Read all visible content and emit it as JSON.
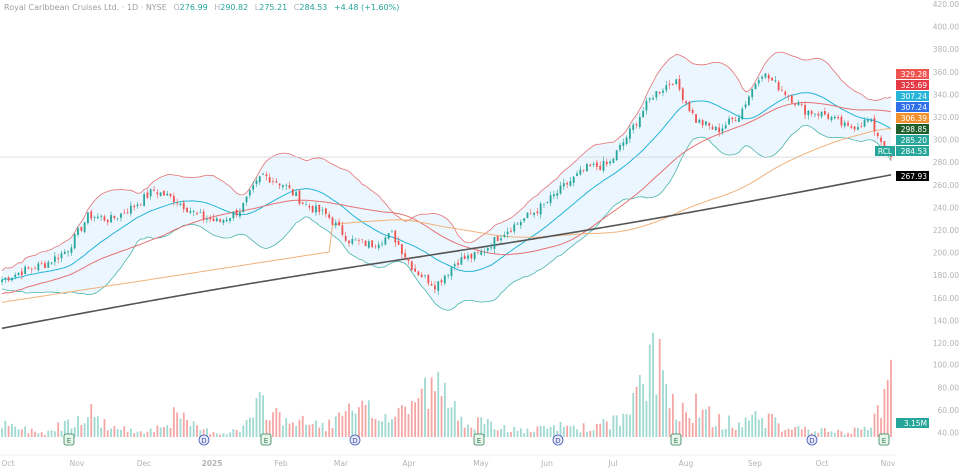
{
  "header": {
    "symbol_name": "Royal Caribbean Cruises Ltd.",
    "interval": "1D",
    "exchange": "NYSE",
    "open_label": "O",
    "open": "276.99",
    "high_label": "H",
    "high": "290.82",
    "low_label": "L",
    "low": "275.21",
    "close_label": "C",
    "close": "284.53",
    "change": "+4.48 (+1.60%)"
  },
  "price_tags": [
    {
      "value": "329.28",
      "color": "#ef5350"
    },
    {
      "value": "325.69",
      "color": "#e53945"
    },
    {
      "value": "307.24",
      "color": "#26b5d9"
    },
    {
      "value": "307.24",
      "color": "#2f6fe8"
    },
    {
      "value": "306.39",
      "color": "#f0902e"
    },
    {
      "value": "298.85",
      "color": "#1f5e2a"
    },
    {
      "value": "285.20",
      "color": "#26a69a"
    },
    {
      "value": "284.53",
      "color": "#26a69a"
    },
    {
      "value": "267.93",
      "color": "#000000"
    }
  ],
  "symbol_tag": "RCL",
  "volume_tag": "3.15M",
  "colors": {
    "up": "#26a69a",
    "down": "#ef5350",
    "upVol": "#9fd9d2",
    "downVol": "#f4a6a4",
    "bb": "#e57373",
    "bbFill": "#e3f2fd",
    "ma20": "#26b5d9",
    "ma50": "#e57373",
    "ma100": "#f0b27a",
    "ma200": "#555555"
  },
  "chart_data": {
    "type": "candlestick",
    "title": "Royal Caribbean Cruises Ltd. · 1D · NYSE",
    "ylim": [
      120,
      420
    ],
    "y_ticks": [
      "420.00",
      "400.00",
      "380.00",
      "360.00",
      "340.00",
      "320.00",
      "300.00",
      "280.00",
      "260.00",
      "240.00",
      "220.00",
      "200.00",
      "180.00",
      "160.00",
      "140.00",
      "120.00"
    ],
    "volume_ticks": [
      "100.00",
      "80.00",
      "60.00",
      "40.00"
    ],
    "x_labels": [
      "Oct",
      "Nov",
      "Dec",
      "2025",
      "Feb",
      "Mar",
      "Apr",
      "May",
      "Jun",
      "Jul",
      "Aug",
      "Sep",
      "Oct",
      "Nov"
    ],
    "approx_closes": [
      176,
      184,
      190,
      202,
      233,
      229,
      240,
      255,
      247,
      233,
      227,
      238,
      269,
      260,
      242,
      233,
      211,
      207,
      216,
      185,
      171,
      193,
      198,
      216,
      229,
      242,
      260,
      275,
      278,
      308,
      339,
      353,
      317,
      308,
      322,
      360,
      344,
      326,
      322,
      310,
      317,
      284.53
    ],
    "approx_volume_millions": [
      48,
      44,
      40,
      52,
      62,
      46,
      42,
      44,
      58,
      45,
      40,
      43,
      70,
      55,
      50,
      48,
      60,
      62,
      55,
      75,
      88,
      60,
      50,
      46,
      42,
      44,
      48,
      45,
      50,
      60,
      120,
      70,
      66,
      52,
      50,
      58,
      46,
      44,
      42,
      40,
      48,
      95
    ],
    "events": [
      {
        "type": "E",
        "label": "E",
        "after_label": "Nov"
      },
      {
        "type": "D",
        "label": "D",
        "after_label": "2025"
      },
      {
        "type": "E",
        "label": "E",
        "after_label": "Feb"
      },
      {
        "type": "D",
        "label": "D",
        "after_label": "Mar"
      },
      {
        "type": "E",
        "label": "E",
        "after_label": "May"
      },
      {
        "type": "D",
        "label": "D",
        "after_label": "Jun"
      },
      {
        "type": "E",
        "label": "E",
        "after_label": "Aug"
      },
      {
        "type": "D",
        "label": "D",
        "after_label": "Oct"
      },
      {
        "type": "E",
        "label": "E",
        "after_label": "Nov"
      }
    ]
  }
}
